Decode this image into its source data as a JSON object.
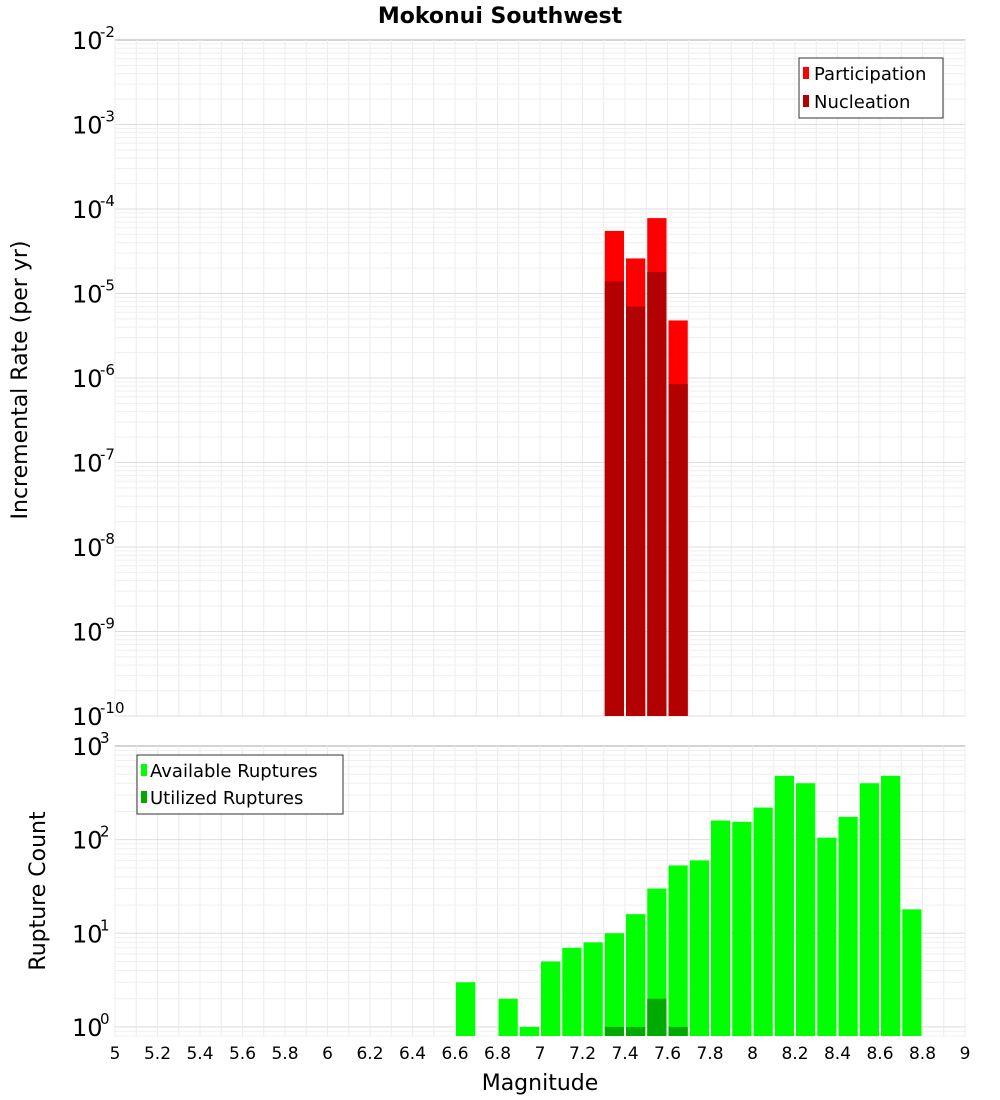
{
  "chart_data": [
    {
      "type": "bar",
      "title": "Mokonui Southwest",
      "xlabel": "",
      "ylabel": "Incremental Rate (per yr)",
      "yscale": "log",
      "ylim": [
        1e-10,
        0.01
      ],
      "xlim": [
        5,
        9
      ],
      "grid": true,
      "legend_position": "top-right",
      "bin_width": 0.1,
      "series": [
        {
          "name": "Participation",
          "color": "#ff0000",
          "x": [
            7.35,
            7.45,
            7.55,
            7.65
          ],
          "values": [
            5.5e-05,
            2.6e-05,
            7.8e-05,
            4.8e-06
          ]
        },
        {
          "name": "Nucleation",
          "color": "#b30000",
          "x": [
            7.35,
            7.45,
            7.55,
            7.65
          ],
          "values": [
            1.4e-05,
            7e-06,
            1.8e-05,
            8.5e-07
          ]
        }
      ]
    },
    {
      "type": "bar",
      "title": "",
      "xlabel": "Magnitude",
      "ylabel": "Rupture Count",
      "yscale": "log",
      "ylim": [
        0.8,
        1000
      ],
      "xlim": [
        5,
        9
      ],
      "grid": true,
      "legend_position": "top-left",
      "bin_width": 0.1,
      "series": [
        {
          "name": "Available Ruptures",
          "color": "#00ff00",
          "x": [
            6.65,
            6.85,
            6.95,
            7.05,
            7.15,
            7.25,
            7.35,
            7.45,
            7.55,
            7.65,
            7.75,
            7.85,
            7.95,
            8.05,
            8.15,
            8.25,
            8.35,
            8.45,
            8.55,
            8.65,
            8.75
          ],
          "values": [
            3,
            2,
            1,
            5,
            7,
            8,
            10,
            16,
            30,
            53,
            60,
            160,
            155,
            220,
            480,
            400,
            105,
            175,
            400,
            480,
            18
          ]
        },
        {
          "name": "Utilized Ruptures",
          "color": "#00aa00",
          "x": [
            7.35,
            7.45,
            7.55,
            7.65
          ],
          "values": [
            1,
            1,
            2,
            1
          ]
        }
      ]
    }
  ],
  "x_ticks": [
    "5",
    "5.2",
    "5.4",
    "5.6",
    "5.8",
    "6",
    "6.2",
    "6.4",
    "6.6",
    "6.8",
    "7",
    "7.2",
    "7.4",
    "7.6",
    "7.8",
    "8",
    "8.2",
    "8.4",
    "8.6",
    "8.8",
    "9"
  ],
  "top_y_ticks": [
    {
      "base": "10",
      "exp": "-2",
      "value": 0.01
    },
    {
      "base": "10",
      "exp": "-3",
      "value": 0.001
    },
    {
      "base": "10",
      "exp": "-4",
      "value": 0.0001
    },
    {
      "base": "10",
      "exp": "-5",
      "value": 1e-05
    },
    {
      "base": "10",
      "exp": "-6",
      "value": 1e-06
    },
    {
      "base": "10",
      "exp": "-7",
      "value": 1e-07
    },
    {
      "base": "10",
      "exp": "-8",
      "value": 1e-08
    },
    {
      "base": "10",
      "exp": "-9",
      "value": 1e-09
    },
    {
      "base": "10",
      "exp": "-10",
      "value": 1e-10
    }
  ],
  "bottom_y_ticks": [
    {
      "base": "10",
      "exp": "3",
      "value": 1000
    },
    {
      "base": "10",
      "exp": "2",
      "value": 100
    },
    {
      "base": "10",
      "exp": "1",
      "value": 10
    },
    {
      "base": "10",
      "exp": "0",
      "value": 1
    }
  ]
}
